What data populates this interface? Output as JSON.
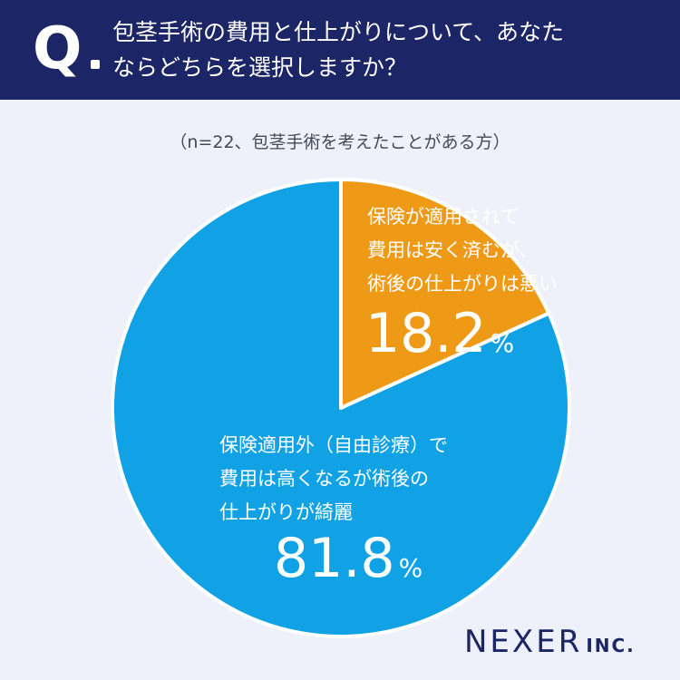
{
  "header": {
    "q_mark": "Q",
    "question": "包茎手術の費用と仕上がりについて、あなた\nならどちらを選択しますか？"
  },
  "subtitle": "（n=22、包茎手術を考えたことがある方）",
  "colors": {
    "header_bg": "#1c2566",
    "slice_orange": "#ef9a17",
    "slice_blue": "#11a2e6",
    "background": "#eef1fa"
  },
  "chart_data": {
    "type": "pie",
    "slices": [
      {
        "label_lines": [
          "保険が適用されて",
          "費用は安く済むが、",
          "術後の仕上がりは悪い"
        ],
        "value": 18.2,
        "value_text": "18.2",
        "unit": "%",
        "color": "#ef9a17"
      },
      {
        "label_lines": [
          "保険適用外（自由診療）で",
          "費用は高くなるが術後の",
          "仕上がりが綺麗"
        ],
        "value": 81.8,
        "value_text": "81.8",
        "unit": "%",
        "color": "#11a2e6"
      }
    ]
  },
  "logo": {
    "main": "NEXER",
    "sub": "INC."
  }
}
